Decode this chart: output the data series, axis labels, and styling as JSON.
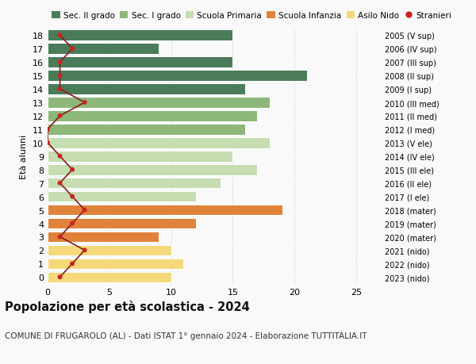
{
  "ages": [
    18,
    17,
    16,
    15,
    14,
    13,
    12,
    11,
    10,
    9,
    8,
    7,
    6,
    5,
    4,
    3,
    2,
    1,
    0
  ],
  "bar_values": [
    15,
    9,
    15,
    21,
    16,
    18,
    17,
    16,
    18,
    15,
    17,
    14,
    12,
    19,
    12,
    9,
    10,
    11,
    10
  ],
  "stranieri": [
    1,
    2,
    1,
    1,
    1,
    3,
    1,
    0,
    0,
    1,
    2,
    1,
    2,
    3,
    2,
    1,
    3,
    2,
    1
  ],
  "bar_colors": [
    "#4a7c59",
    "#4a7c59",
    "#4a7c59",
    "#4a7c59",
    "#4a7c59",
    "#8db87a",
    "#8db87a",
    "#8db87a",
    "#c5ddb0",
    "#c5ddb0",
    "#c5ddb0",
    "#c5ddb0",
    "#c5ddb0",
    "#e0823a",
    "#e0823a",
    "#e0823a",
    "#f5d87a",
    "#f5d87a",
    "#f5d87a"
  ],
  "right_labels": [
    "2005 (V sup)",
    "2006 (IV sup)",
    "2007 (III sup)",
    "2008 (II sup)",
    "2009 (I sup)",
    "2010 (III med)",
    "2011 (II med)",
    "2012 (I med)",
    "2013 (V ele)",
    "2014 (IV ele)",
    "2015 (III ele)",
    "2016 (II ele)",
    "2017 (I ele)",
    "2018 (mater)",
    "2019 (mater)",
    "2020 (mater)",
    "2021 (nido)",
    "2022 (nido)",
    "2023 (nido)"
  ],
  "legend_labels": [
    "Sec. II grado",
    "Sec. I grado",
    "Scuola Primaria",
    "Scuola Infanzia",
    "Asilo Nido",
    "Stranieri"
  ],
  "legend_colors": [
    "#4a7c59",
    "#8db87a",
    "#c5ddb0",
    "#e0823a",
    "#f5d87a",
    "#cc2222"
  ],
  "ylabel_left": "Età alunni",
  "title": "Popolazione per età scolastica - 2024",
  "subtitle": "COMUNE DI FRUGAROLO (AL) - Dati ISTAT 1° gennaio 2024 - Elaborazione TUTTITALIA.IT",
  "xlim": [
    0,
    27
  ],
  "xticks": [
    0,
    5,
    10,
    15,
    20,
    25
  ],
  "stranieri_color": "#cc2222",
  "stranieri_line_color": "#8b1a1a",
  "bg_color": "#f9f9f9"
}
